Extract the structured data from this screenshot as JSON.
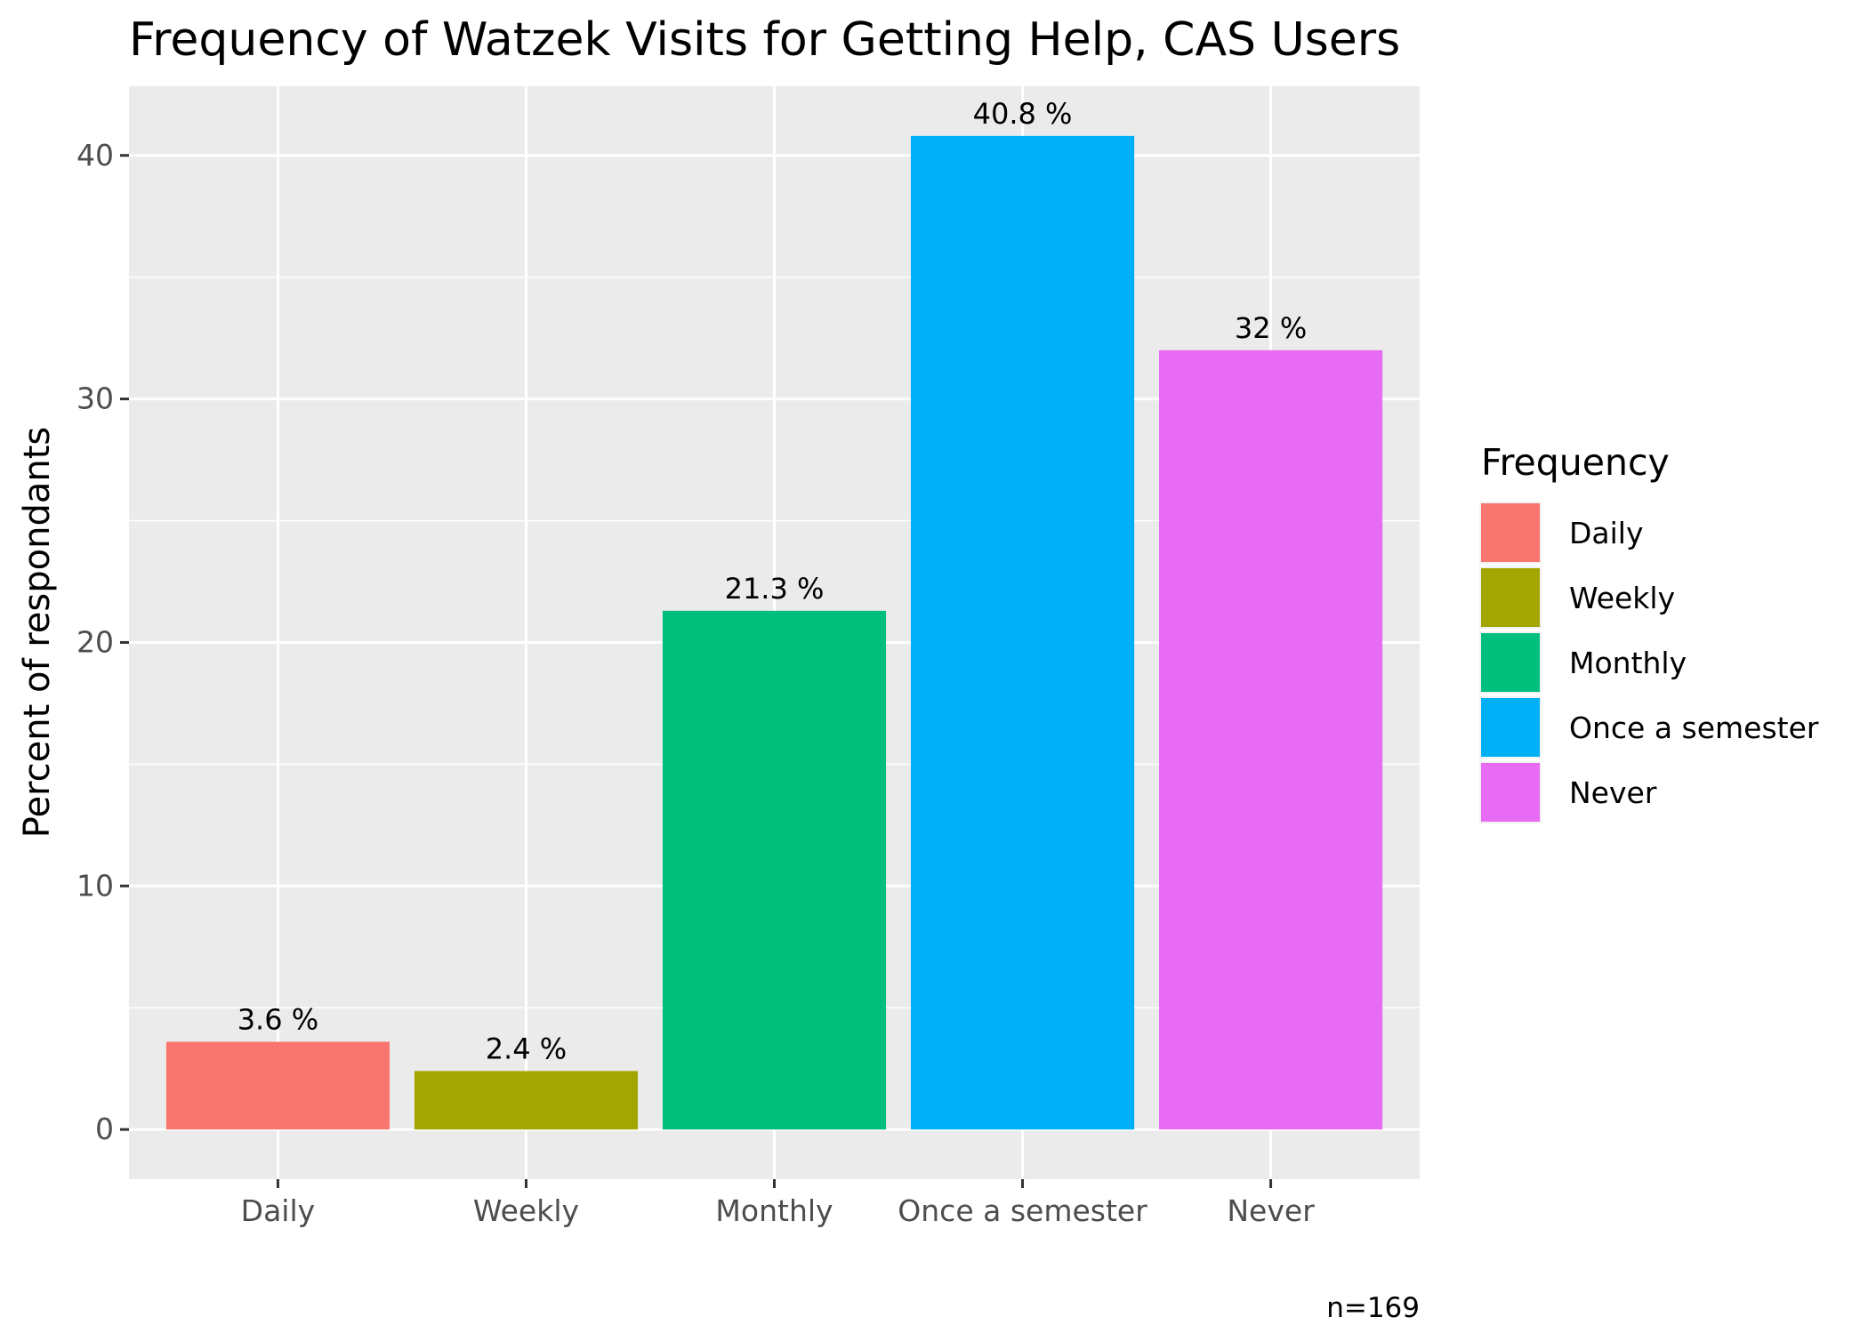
{
  "chart_data": {
    "type": "bar",
    "title": "Frequency of Watzek Visits for Getting Help, CAS Users",
    "xlabel": "",
    "ylabel": "Percent of respondants",
    "categories": [
      "Daily",
      "Weekly",
      "Monthly",
      "Once a semester",
      "Never"
    ],
    "values": [
      3.6,
      2.4,
      21.3,
      40.8,
      32
    ],
    "data_labels": [
      "3.6 %",
      "2.4 %",
      "21.3 %",
      "40.8 %",
      "32 %"
    ],
    "colors": [
      "#F8766D",
      "#A3A500",
      "#00BF7D",
      "#00B0F6",
      "#E76BF3"
    ],
    "y_ticks": [
      0,
      10,
      20,
      30,
      40
    ],
    "ylim": [
      -2.04,
      42.84
    ],
    "grid": true,
    "panel_background": "#EBEBEB",
    "legend": {
      "title": "Frequency",
      "placement": "right",
      "entries": [
        "Daily",
        "Weekly",
        "Monthly",
        "Once a semester",
        "Never"
      ]
    },
    "caption": "n=169"
  }
}
